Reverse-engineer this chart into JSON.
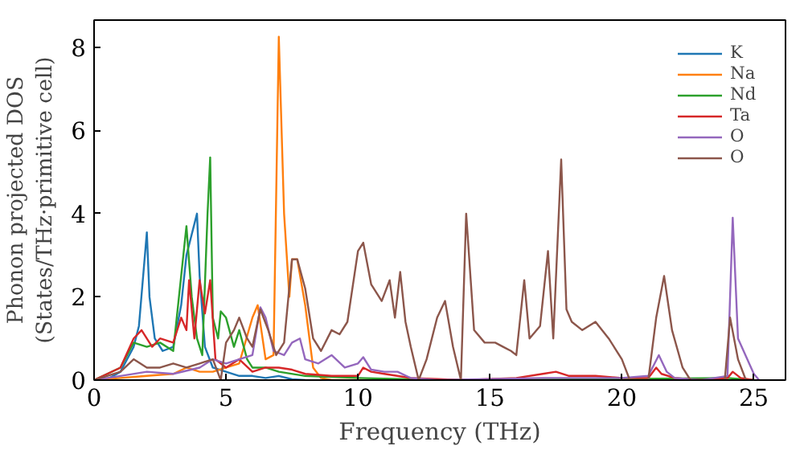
{
  "chart_data": {
    "type": "line",
    "xlabel": "Frequency (THz)",
    "ylabel": "Phonon projected DOS\n(States/THz·primitive cell)",
    "xlim": [
      0,
      26.2
    ],
    "ylim": [
      0,
      8.65
    ],
    "xticks": [
      0,
      5,
      10,
      15,
      20,
      25
    ],
    "yticks": [
      0,
      2,
      4,
      6,
      8
    ],
    "legend": "top right",
    "grid": false,
    "marker": "none",
    "line_style": "solid",
    "series": [
      {
        "name": "K",
        "color": "#1f77b4",
        "x": [
          0,
          0.5,
          1,
          1.5,
          1.7,
          1.9,
          2.0,
          2.1,
          2.3,
          2.6,
          3.0,
          3.3,
          3.5,
          3.7,
          3.9,
          4.0,
          4.2,
          4.5,
          5,
          5.5,
          6,
          6.5,
          7,
          7.5,
          8
        ],
        "values": [
          0,
          0.02,
          0.2,
          0.8,
          1.3,
          2.8,
          3.55,
          2.0,
          1.0,
          0.7,
          0.8,
          1.8,
          3.0,
          3.5,
          4.0,
          2.5,
          0.8,
          0.3,
          0.2,
          0.1,
          0.1,
          0.05,
          0.1,
          0.02,
          0
        ]
      },
      {
        "name": "Na",
        "color": "#ff7f0e",
        "x": [
          0,
          1,
          2,
          3,
          3.5,
          4,
          4.5,
          5,
          5.5,
          6,
          6.2,
          6.5,
          6.8,
          7.0,
          7.2,
          7.4,
          7.5,
          7.7,
          8.0,
          8.3,
          8.6,
          9,
          25
        ],
        "values": [
          0,
          0.05,
          0.1,
          0.15,
          0.3,
          0.2,
          0.2,
          0.3,
          0.4,
          1.5,
          1.8,
          0.5,
          0.6,
          8.25,
          4.0,
          2.0,
          2.9,
          2.9,
          1.8,
          0.3,
          0.05,
          0,
          0
        ]
      },
      {
        "name": "Nd",
        "color": "#2ca02c",
        "x": [
          0,
          1,
          1.5,
          2,
          2.5,
          3,
          3.3,
          3.5,
          3.7,
          3.9,
          4.1,
          4.3,
          4.4,
          4.5,
          4.7,
          4.8,
          5.0,
          5.3,
          5.5,
          5.8,
          6.0,
          6.5,
          7,
          8,
          10,
          12,
          15,
          24,
          25
        ],
        "values": [
          0,
          0.3,
          0.9,
          0.8,
          0.9,
          0.7,
          2.5,
          3.7,
          2.0,
          1.0,
          0.6,
          4.0,
          5.35,
          1.5,
          1.0,
          1.65,
          1.5,
          0.8,
          1.2,
          0.5,
          0.3,
          0.3,
          0.2,
          0.1,
          0.05,
          0.02,
          0,
          0.05,
          0
        ]
      },
      {
        "name": "Ta",
        "color": "#d62728",
        "x": [
          0,
          1,
          1.5,
          1.8,
          2.2,
          2.5,
          3,
          3.3,
          3.5,
          3.6,
          3.8,
          4.0,
          4.2,
          4.4,
          4.6,
          5,
          5.5,
          6,
          6.5,
          7,
          7.5,
          8,
          9,
          10,
          10.2,
          10.5,
          11,
          12,
          14,
          16,
          17,
          17.5,
          18,
          19,
          20,
          21,
          21.3,
          21.5,
          22,
          23,
          24,
          24.2,
          24.5,
          25
        ],
        "values": [
          0,
          0.3,
          1.0,
          1.2,
          0.8,
          1.0,
          0.9,
          1.5,
          1.2,
          2.4,
          1.0,
          2.4,
          1.6,
          2.4,
          0.5,
          0.3,
          0.5,
          0.2,
          0.3,
          0.3,
          0.25,
          0.15,
          0.1,
          0.1,
          0.3,
          0.2,
          0.15,
          0.05,
          0,
          0.05,
          0.15,
          0.2,
          0.1,
          0.1,
          0.05,
          0.05,
          0.3,
          0.15,
          0.05,
          0,
          0.05,
          0.2,
          0.05,
          0
        ]
      },
      {
        "name": "O",
        "color": "#9467bd",
        "x": [
          0,
          1,
          2,
          3,
          4,
          4.5,
          5,
          5.5,
          6,
          6.3,
          6.5,
          6.8,
          7.2,
          7.5,
          7.8,
          8,
          8.5,
          9,
          9.5,
          10,
          10.2,
          10.5,
          11,
          11.5,
          12,
          13,
          17,
          20,
          21,
          21.4,
          21.7,
          22,
          23,
          24,
          24.2,
          24.4,
          25,
          25.2
        ],
        "values": [
          0,
          0.1,
          0.2,
          0.15,
          0.3,
          0.5,
          0.4,
          0.5,
          0.6,
          1.75,
          1.5,
          0.7,
          0.6,
          0.9,
          1.0,
          0.5,
          0.4,
          0.6,
          0.3,
          0.4,
          0.55,
          0.25,
          0.2,
          0.2,
          0.05,
          0,
          0.05,
          0.05,
          0.1,
          0.6,
          0.2,
          0.05,
          0,
          0.1,
          3.9,
          1.0,
          0.15,
          0
        ]
      },
      {
        "name": "O",
        "color": "#8c564b",
        "x": [
          0,
          1,
          1.5,
          2,
          2.5,
          3,
          3.5,
          4,
          4.5,
          4.8,
          5,
          5.3,
          5.5,
          5.8,
          6,
          6.3,
          6.6,
          6.9,
          7.2,
          7.5,
          7.7,
          8,
          8.3,
          8.6,
          9,
          9.3,
          9.6,
          10,
          10.2,
          10.5,
          10.9,
          11.2,
          11.4,
          11.6,
          11.8,
          12,
          12.3,
          12.6,
          13,
          13.3,
          13.6,
          13.9,
          14.1,
          14.4,
          14.8,
          15.2,
          15.5,
          15.8,
          16,
          16.3,
          16.5,
          16.9,
          17.2,
          17.4,
          17.7,
          17.9,
          18.1,
          18.5,
          19,
          19.5,
          20,
          20.3,
          21,
          21.3,
          21.6,
          21.9,
          22.3,
          22.6,
          23.9,
          24.1,
          24.4,
          24.7,
          25
        ],
        "values": [
          0,
          0.2,
          0.5,
          0.3,
          0.3,
          0.4,
          0.3,
          0.4,
          0.5,
          0,
          0.9,
          1.2,
          1.5,
          1.0,
          0.8,
          1.7,
          1.2,
          0.6,
          0.9,
          2.9,
          2.9,
          2.2,
          1.0,
          0.7,
          1.2,
          1.1,
          1.4,
          3.1,
          3.3,
          2.3,
          1.9,
          2.4,
          1.5,
          2.6,
          1.4,
          0.8,
          0,
          0.5,
          1.5,
          1.9,
          0.8,
          0,
          4.0,
          1.2,
          0.9,
          0.9,
          0.8,
          0.7,
          0.6,
          2.4,
          1.0,
          1.3,
          3.1,
          1.0,
          5.3,
          1.7,
          1.4,
          1.2,
          1.4,
          1.0,
          0.5,
          0,
          0,
          1.5,
          2.5,
          1.2,
          0.3,
          0,
          0,
          1.5,
          0.5,
          0,
          0
        ]
      }
    ]
  }
}
